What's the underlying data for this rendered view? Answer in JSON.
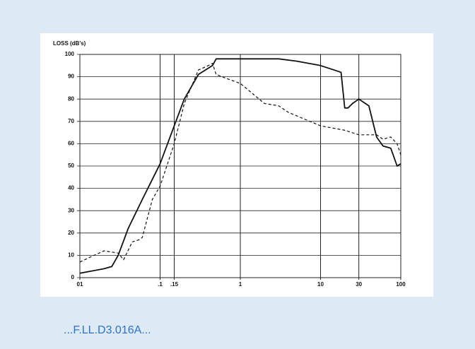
{
  "chart_data": {
    "type": "line",
    "ylabel": "LOSS (dB's)",
    "xscale": "log",
    "xlim": [
      0.01,
      100
    ],
    "ylim": [
      0,
      100
    ],
    "xticks": [
      {
        "value": 0.01,
        "label": "01"
      },
      {
        "value": 0.1,
        "label": ".1"
      },
      {
        "value": 0.15,
        "label": ".15"
      },
      1,
      10,
      30,
      100
    ],
    "yticks": [
      0,
      10,
      20,
      30,
      40,
      50,
      60,
      70,
      80,
      90,
      100
    ],
    "grid": true,
    "series": [
      {
        "color": "#111111",
        "dashed": false,
        "x": [
          0.01,
          0.02,
          0.025,
          0.03,
          0.04,
          0.06,
          0.1,
          0.15,
          0.2,
          0.3,
          0.45,
          0.5,
          1,
          3,
          5,
          10,
          18,
          20,
          22,
          25,
          30,
          40,
          50,
          60,
          75,
          90,
          100
        ],
        "values": [
          2,
          4,
          5,
          10,
          22,
          35,
          51,
          68,
          80,
          91,
          95,
          98,
          98,
          98,
          97,
          95,
          92,
          76,
          76,
          78,
          80,
          77,
          63,
          59,
          58,
          50,
          51
        ]
      },
      {
        "color": "#111111",
        "dashed": true,
        "x": [
          0.01,
          0.015,
          0.02,
          0.03,
          0.035,
          0.045,
          0.055,
          0.06,
          0.08,
          0.1,
          0.15,
          0.2,
          0.3,
          0.4,
          0.45,
          0.5,
          0.7,
          1,
          2,
          3,
          4,
          10,
          20,
          30,
          50,
          60,
          75,
          90,
          100
        ],
        "values": [
          7,
          10,
          12,
          11,
          8,
          16,
          17,
          18,
          35,
          41,
          60,
          78,
          93,
          95,
          96,
          91,
          89,
          87,
          78,
          77,
          74,
          68,
          66,
          64,
          64,
          62,
          63,
          60,
          55
        ]
      }
    ]
  },
  "caption": "...F.LL.D3.016A..."
}
